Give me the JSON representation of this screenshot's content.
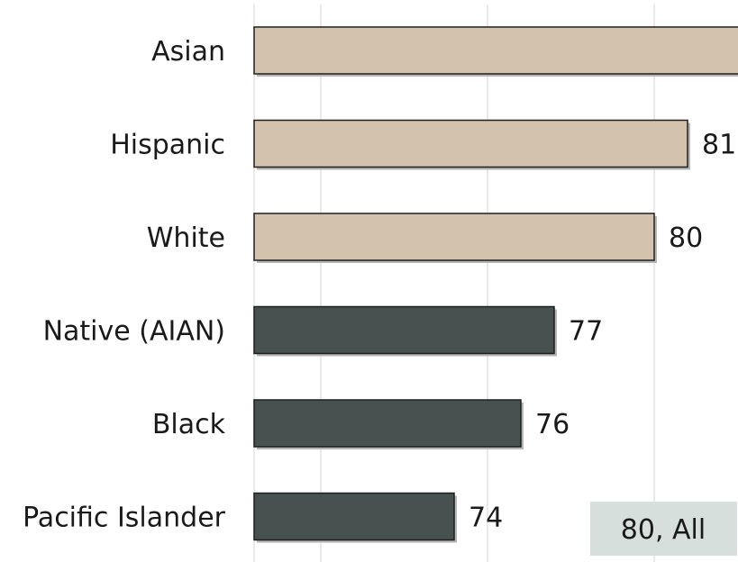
{
  "chart_data": {
    "type": "bar",
    "orientation": "horizontal",
    "categories": [
      "Asian",
      "Hispanic",
      "White",
      "Native (AIAN)",
      "Black",
      "Pacific Islander"
    ],
    "values": [
      83,
      81,
      80,
      77,
      76,
      74
    ],
    "bar_colors": [
      "#d3c3ae",
      "#d3c3ae",
      "#d3c3ae",
      "#475150",
      "#475150",
      "#475150"
    ],
    "xlim": [
      68,
      85
    ],
    "grid": true,
    "reference": {
      "label": "80, All",
      "background": "#d7dfdc"
    }
  }
}
